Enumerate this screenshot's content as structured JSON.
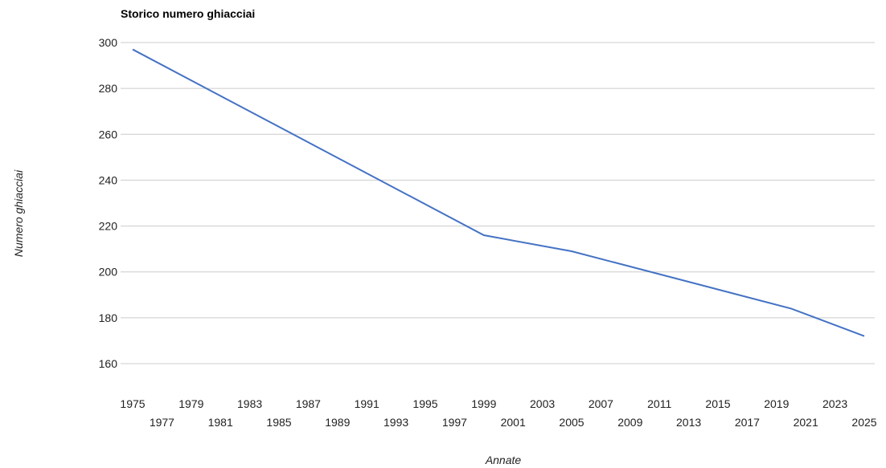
{
  "chart_data": {
    "type": "line",
    "title": "Storico numero ghiacciai",
    "xlabel": "Annate",
    "ylabel": "Numero ghiacciai",
    "xlim": [
      1975,
      2025
    ],
    "ylim": [
      160,
      300
    ],
    "y_ticks": [
      160,
      180,
      200,
      220,
      240,
      260,
      280,
      300
    ],
    "x_ticks": [
      1975,
      1977,
      1979,
      1981,
      1983,
      1985,
      1987,
      1989,
      1991,
      1993,
      1995,
      1997,
      1999,
      2001,
      2003,
      2005,
      2007,
      2009,
      2011,
      2013,
      2015,
      2017,
      2019,
      2021,
      2023,
      2025
    ],
    "grid": true,
    "legend": "none",
    "series": [
      {
        "color": "#4472C4",
        "points": [
          {
            "x": 1975,
            "y": 297
          },
          {
            "x": 1999,
            "y": 216
          },
          {
            "x": 2005,
            "y": 209
          },
          {
            "x": 2020,
            "y": 184
          },
          {
            "x": 2025,
            "y": 172
          }
        ]
      }
    ]
  }
}
